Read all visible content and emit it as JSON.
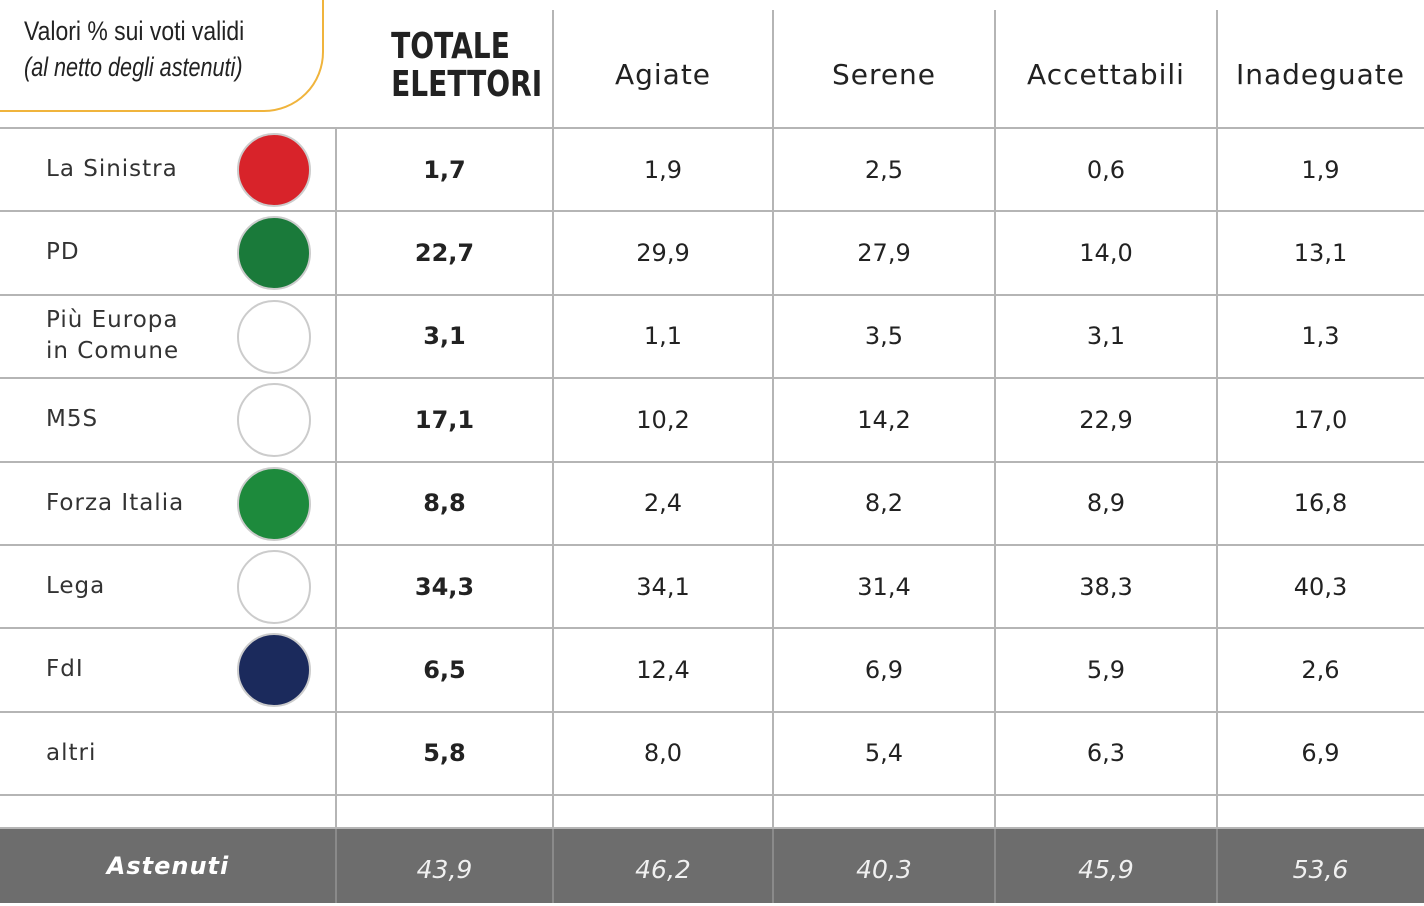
{
  "header": {
    "note": "Valori % sui voti validi",
    "note_sub": "(al netto degli astenuti)",
    "total": "TOTALE ELETTORI",
    "columns": [
      "Agiate",
      "Serene",
      "Accettabili",
      "Inadeguate"
    ]
  },
  "rows": [
    {
      "party": "La Sinistra",
      "values": [
        "1,7",
        "1,9",
        "2,5",
        "0,6",
        "1,9"
      ]
    },
    {
      "party": "PD",
      "values": [
        "22,7",
        "29,9",
        "27,9",
        "14,0",
        "13,1"
      ]
    },
    {
      "party": "Più Europa in Comune",
      "values": [
        "3,1",
        "1,1",
        "3,5",
        "3,1",
        "1,3"
      ]
    },
    {
      "party": "M5S",
      "values": [
        "17,1",
        "10,2",
        "14,2",
        "22,9",
        "17,0"
      ]
    },
    {
      "party": "Forza Italia",
      "values": [
        "8,8",
        "2,4",
        "8,2",
        "8,9",
        "16,8"
      ]
    },
    {
      "party": "Lega",
      "values": [
        "34,3",
        "34,1",
        "31,4",
        "38,3",
        "40,3"
      ]
    },
    {
      "party": "FdI",
      "values": [
        "6,5",
        "12,4",
        "6,9",
        "5,9",
        "2,6"
      ]
    },
    {
      "party": "altri",
      "values": [
        "5,8",
        "8,0",
        "5,4",
        "6,3",
        "6,9"
      ]
    }
  ],
  "footer": {
    "label": "Astenuti",
    "values": [
      "43,9",
      "46,2",
      "40,3",
      "45,9",
      "53,6"
    ]
  }
}
